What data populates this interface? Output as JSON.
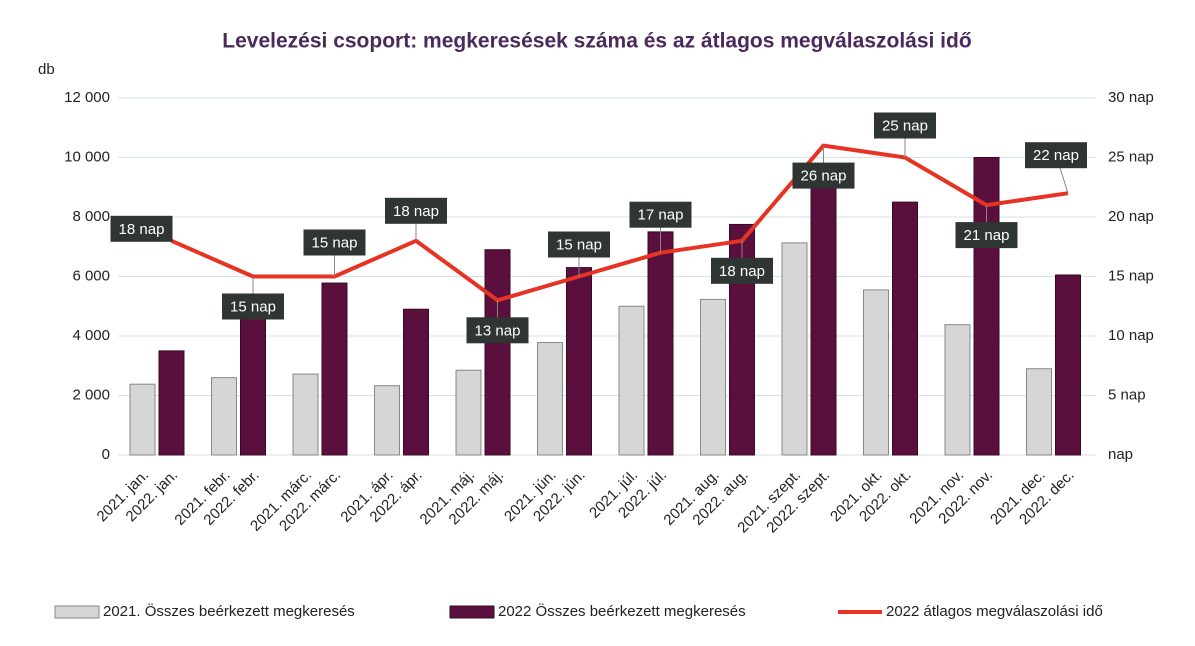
{
  "chart_data": {
    "type": "bar+line",
    "title": "Levelezési csoport: megkeresések száma és az átlagos megválaszolási idő",
    "ylabel": "db",
    "categories": [
      "2021. jan.",
      "2021. febr.",
      "2021. márc.",
      "2021. ápr.",
      "2021. máj.",
      "2021. jún.",
      "2021. júl.",
      "2021. aug.",
      "2021. szept.",
      "2021. okt.",
      "2021. nov.",
      "2021. dec."
    ],
    "categories_2022": [
      "2022. jan.",
      "2022. febr.",
      "2022. márc.",
      "2022. ápr.",
      "2022. máj.",
      "2022. jún.",
      "2022. júl.",
      "2022. aug.",
      "2022. szept.",
      "2022. okt.",
      "2022. nov.",
      "2022. dec."
    ],
    "series": [
      {
        "name": "2021. Összes beérkezett megkeresés",
        "type": "bar",
        "color": "#d6d6d6",
        "values": [
          2380,
          2600,
          2720,
          2330,
          2850,
          3780,
          5000,
          5230,
          7130,
          5550,
          4380,
          2900
        ]
      },
      {
        "name": "2022 Összes beérkezett megkeresés",
        "type": "bar",
        "color": "#5a0f3c",
        "values": [
          3500,
          4850,
          5780,
          4900,
          6900,
          6300,
          7500,
          7750,
          9300,
          8500,
          10000,
          6050
        ]
      },
      {
        "name": "2022 átlagos megválaszolási idő",
        "type": "line",
        "axis": "y2",
        "color": "#e63323",
        "values": [
          18,
          15,
          15,
          18,
          13,
          15,
          17,
          18,
          26,
          25,
          21,
          22
        ],
        "value_labels": [
          "18 nap",
          "15 nap",
          "15 nap",
          "18 nap",
          "13 nap",
          "15 nap",
          "17 nap",
          "18 nap",
          "26 nap",
          "25 nap",
          "21 nap",
          "22 nap"
        ]
      }
    ],
    "ylim": [
      0,
      12000
    ],
    "yticks": [
      {
        "value": 0,
        "label": "0"
      },
      {
        "value": 2000,
        "label": "2 000"
      },
      {
        "value": 4000,
        "label": "4 000"
      },
      {
        "value": 6000,
        "label": "6 000"
      },
      {
        "value": 8000,
        "label": "8 000"
      },
      {
        "value": 10000,
        "label": "10 000"
      },
      {
        "value": 12000,
        "label": "12 000"
      }
    ],
    "y2lim": [
      0,
      30
    ],
    "y2ticks": [
      {
        "value": 0,
        "label": "nap"
      },
      {
        "value": 5,
        "label": "5 nap"
      },
      {
        "value": 10,
        "label": "10 nap"
      },
      {
        "value": 15,
        "label": "15 nap"
      },
      {
        "value": 20,
        "label": "20 nap"
      },
      {
        "value": 25,
        "label": "25 nap"
      },
      {
        "value": 30,
        "label": "30 nap"
      }
    ],
    "grid": true,
    "legend": "bottom"
  }
}
